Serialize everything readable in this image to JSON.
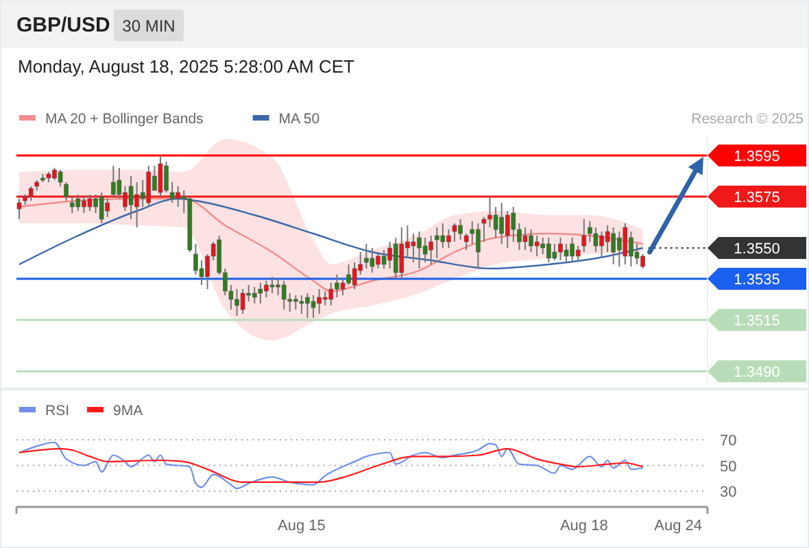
{
  "chart_data": [
    {
      "type": "candlestick",
      "title": "GBP/USD",
      "subtitle": "Monday, August 18, 2025 5:28:00 AM CET",
      "annotations": [
        "30 MIN",
        "Research © 2025"
      ],
      "legend": "top left",
      "ylim": [
        1.3484,
        1.3604
      ],
      "yticks": [
        {
          "value": 1.349,
          "label": "1.3490"
        },
        1.3515,
        1.3535,
        {
          "value": 1.355,
          "label": "1.3550"
        },
        1.3575,
        1.3595
      ],
      "categories": [
        null,
        null,
        null,
        null,
        null,
        null,
        null,
        null,
        null,
        null,
        null,
        null,
        null,
        null,
        null,
        null,
        null,
        null,
        null,
        null,
        null,
        null,
        null,
        null,
        null,
        null,
        null,
        null,
        null,
        null,
        null,
        null,
        null,
        null,
        null,
        null,
        null,
        null,
        null,
        null,
        null,
        null,
        null,
        null,
        null,
        null,
        null,
        null,
        null,
        null,
        null,
        null,
        null,
        null,
        null,
        null,
        null,
        null,
        null,
        null,
        null,
        null,
        null,
        null,
        null,
        null,
        null,
        null,
        null,
        null,
        null,
        null,
        null,
        null,
        null,
        null,
        null,
        null,
        null,
        null,
        null,
        null,
        null,
        null,
        null,
        null,
        null,
        null,
        null,
        null,
        null,
        null,
        null,
        null,
        null,
        null,
        null,
        null,
        null,
        null,
        null,
        null,
        null,
        null,
        null,
        null,
        null,
        null,
        null,
        null,
        null,
        null,
        null,
        null,
        null,
        null,
        null,
        null
      ],
      "ohlc": [
        [
          1.3569,
          1.3574,
          1.3564,
          1.3572
        ],
        [
          1.3573,
          1.3576,
          1.3571,
          1.3575
        ],
        [
          1.3575,
          1.358,
          1.3573,
          1.3579
        ],
        [
          1.358,
          1.3583,
          1.3578,
          1.3582
        ],
        [
          1.3584,
          1.3586,
          1.3582,
          1.3583
        ],
        [
          1.3584,
          1.3587,
          1.3582,
          1.3586
        ],
        [
          1.3584,
          1.3589,
          1.3583,
          1.3588
        ],
        [
          1.3587,
          1.3588,
          1.358,
          1.3582
        ],
        [
          1.3581,
          1.3582,
          1.3573,
          1.3575
        ],
        [
          1.3572,
          1.3575,
          1.3567,
          1.357
        ],
        [
          1.3574,
          1.3576,
          1.3568,
          1.357
        ],
        [
          1.357,
          1.3575,
          1.3567,
          1.3573
        ],
        [
          1.357,
          1.3576,
          1.3568,
          1.3574
        ],
        [
          1.3574,
          1.3576,
          1.3567,
          1.357
        ],
        [
          1.3575,
          1.3577,
          1.3562,
          1.3564
        ],
        [
          1.3568,
          1.3574,
          1.3565,
          1.3572
        ],
        [
          1.3582,
          1.359,
          1.3575,
          1.3576
        ],
        [
          1.3583,
          1.3589,
          1.3574,
          1.3576
        ],
        [
          1.357,
          1.358,
          1.3568,
          1.3577
        ],
        [
          1.358,
          1.3585,
          1.3564,
          1.3571
        ],
        [
          1.357,
          1.3582,
          1.356,
          1.3576
        ],
        [
          1.3577,
          1.3583,
          1.357,
          1.3574
        ],
        [
          1.3572,
          1.359,
          1.357,
          1.3587
        ],
        [
          1.3585,
          1.359,
          1.3578,
          1.3578
        ],
        [
          1.3577,
          1.3595,
          1.3575,
          1.3591
        ],
        [
          1.359,
          1.3592,
          1.3577,
          1.3578
        ],
        [
          1.3577,
          1.3582,
          1.3572,
          1.3574
        ],
        [
          1.3574,
          1.358,
          1.357,
          1.3577
        ],
        [
          1.3575,
          1.3578,
          1.3567,
          1.3574
        ],
        [
          1.3574,
          1.3575,
          1.3548,
          1.3549
        ],
        [
          1.3547,
          1.3552,
          1.3537,
          1.3539
        ],
        [
          1.354,
          1.3544,
          1.3532,
          1.3536
        ],
        [
          1.3536,
          1.3547,
          1.353,
          1.3546
        ],
        [
          1.3546,
          1.3553,
          1.3544,
          1.3552
        ],
        [
          1.3554,
          1.3556,
          1.3537,
          1.3538
        ],
        [
          1.3538,
          1.354,
          1.3527,
          1.3529
        ],
        [
          1.3529,
          1.3532,
          1.352,
          1.3525
        ],
        [
          1.3525,
          1.353,
          1.3517,
          1.3522
        ],
        [
          1.352,
          1.353,
          1.3518,
          1.3528
        ],
        [
          1.3528,
          1.3532,
          1.3524,
          1.3527
        ],
        [
          1.3528,
          1.3531,
          1.3523,
          1.3526
        ],
        [
          1.353,
          1.3533,
          1.3523,
          1.3528
        ],
        [
          1.3529,
          1.3534,
          1.3526,
          1.3532
        ],
        [
          1.3532,
          1.3536,
          1.3528,
          1.3531
        ],
        [
          1.3532,
          1.3535,
          1.3527,
          1.3531
        ],
        [
          1.3532,
          1.3534,
          1.352,
          1.3525
        ],
        [
          1.3525,
          1.3528,
          1.3519,
          1.3524
        ],
        [
          1.3525,
          1.3527,
          1.352,
          1.3524
        ],
        [
          1.3524,
          1.3527,
          1.3518,
          1.3523
        ],
        [
          1.3526,
          1.3528,
          1.3516,
          1.3523
        ],
        [
          1.3524,
          1.3527,
          1.3516,
          1.3521
        ],
        [
          1.3523,
          1.353,
          1.3518,
          1.3526
        ],
        [
          1.3525,
          1.3529,
          1.3522,
          1.3526
        ],
        [
          1.3525,
          1.3533,
          1.3522,
          1.353
        ],
        [
          1.3533,
          1.3537,
          1.3526,
          1.353
        ],
        [
          1.353,
          1.3535,
          1.3527,
          1.3533
        ],
        [
          1.3537,
          1.3542,
          1.3532,
          1.3533
        ],
        [
          1.3532,
          1.3543,
          1.353,
          1.354
        ],
        [
          1.3539,
          1.3548,
          1.3537,
          1.3542
        ],
        [
          1.3545,
          1.3552,
          1.354,
          1.3543
        ],
        [
          1.3545,
          1.355,
          1.3538,
          1.3541
        ],
        [
          1.3542,
          1.3548,
          1.354,
          1.3546
        ],
        [
          1.3546,
          1.3549,
          1.354,
          1.3542
        ],
        [
          1.3544,
          1.3553,
          1.354,
          1.355
        ],
        [
          1.3552,
          1.3555,
          1.3535,
          1.3538
        ],
        [
          1.3538,
          1.356,
          1.3535,
          1.3552
        ],
        [
          1.355,
          1.3561,
          1.3545,
          1.3553
        ],
        [
          1.3551,
          1.3557,
          1.3543,
          1.3553
        ],
        [
          1.3555,
          1.3558,
          1.354,
          1.355
        ],
        [
          1.3551,
          1.3555,
          1.3543,
          1.3547
        ],
        [
          1.3549,
          1.3556,
          1.3542,
          1.3553
        ],
        [
          1.3556,
          1.356,
          1.3545,
          1.3554
        ],
        [
          1.3556,
          1.3562,
          1.355,
          1.3553
        ],
        [
          1.3553,
          1.3559,
          1.355,
          1.3556
        ],
        [
          1.3558,
          1.3562,
          1.3553,
          1.3561
        ],
        [
          1.3561,
          1.3564,
          1.3554,
          1.3557
        ],
        [
          1.3553,
          1.3557,
          1.3549,
          1.3556
        ],
        [
          1.3559,
          1.3563,
          1.3552,
          1.3557
        ],
        [
          1.3559,
          1.3562,
          1.354,
          1.3548
        ],
        [
          1.3562,
          1.3565,
          1.3553,
          1.3564
        ],
        [
          1.3564,
          1.3575,
          1.356,
          1.3566
        ],
        [
          1.3566,
          1.357,
          1.3555,
          1.3559
        ],
        [
          1.3565,
          1.3572,
          1.3552,
          1.3557
        ],
        [
          1.3556,
          1.3568,
          1.355,
          1.3566
        ],
        [
          1.3567,
          1.357,
          1.3553,
          1.3559
        ],
        [
          1.3559,
          1.3562,
          1.3549,
          1.3553
        ],
        [
          1.3553,
          1.356,
          1.3549,
          1.3556
        ],
        [
          1.3556,
          1.3559,
          1.3548,
          1.3551
        ],
        [
          1.3551,
          1.3556,
          1.3546,
          1.3553
        ],
        [
          1.3552,
          1.3555,
          1.3547,
          1.355
        ],
        [
          1.3552,
          1.3555,
          1.3543,
          1.3545
        ],
        [
          1.3548,
          1.3552,
          1.3544,
          1.3545
        ],
        [
          1.3548,
          1.3555,
          1.3544,
          1.3552
        ],
        [
          1.3549,
          1.3552,
          1.3543,
          1.3546
        ],
        [
          1.3552,
          1.3555,
          1.3543,
          1.3546
        ],
        [
          1.3546,
          1.3551,
          1.3544,
          1.3549
        ],
        [
          1.3551,
          1.3564,
          1.3548,
          1.3556
        ],
        [
          1.356,
          1.3563,
          1.3553,
          1.3557
        ],
        [
          1.3557,
          1.356,
          1.3548,
          1.3551
        ],
        [
          1.3551,
          1.3558,
          1.3546,
          1.3556
        ],
        [
          1.3553,
          1.3561,
          1.3548,
          1.3558
        ],
        [
          1.3557,
          1.356,
          1.3542,
          1.3548
        ],
        [
          1.3555,
          1.3558,
          1.3541,
          1.3549
        ],
        [
          1.3546,
          1.3562,
          1.3542,
          1.356
        ],
        [
          1.3555,
          1.3558,
          1.3541,
          1.3546
        ],
        [
          1.3548,
          1.3552,
          1.3542,
          1.3545
        ],
        [
          1.3541,
          1.3547,
          1.354,
          1.3546
        ],
        null,
        null,
        null,
        null,
        null,
        null,
        null,
        null,
        null,
        null,
        null
      ],
      "colors": [
        "#e8141c",
        "#e8141c",
        "#e8141c",
        "#e8141c",
        "#2f7d1f",
        "#e8141c",
        "#e8141c",
        "#2f7d1f",
        "#2f7d1f",
        "#2f7d1f",
        "#2f7d1f",
        "#e8141c",
        "#e8141c",
        "#2f7d1f",
        "#2f7d1f",
        "#e8141c",
        "#2f7d1f",
        "#2f7d1f",
        "#e8141c",
        "#2f7d1f",
        "#e8141c",
        "#2f7d1f",
        "#e8141c",
        "#2f7d1f",
        "#e8141c",
        "#2f7d1f",
        "#2f7d1f",
        "#e8141c",
        "#2f7d1f",
        "#2f7d1f",
        "#2f7d1f",
        "#2f7d1f",
        "#e8141c",
        "#e8141c",
        "#2f7d1f",
        "#2f7d1f",
        "#2f7d1f",
        "#2f7d1f",
        "#e8141c",
        "#2f7d1f",
        "#2f7d1f",
        "#2f7d1f",
        "#e8141c",
        "#2f7d1f",
        "#2f7d1f",
        "#2f7d1f",
        "#2f7d1f",
        "#2f7d1f",
        "#2f7d1f",
        "#2f7d1f",
        "#2f7d1f",
        "#e8141c",
        "#e8141c",
        "#e8141c",
        "#2f7d1f",
        "#e8141c",
        "#2f7d1f",
        "#e8141c",
        "#e8141c",
        "#2f7d1f",
        "#2f7d1f",
        "#e8141c",
        "#2f7d1f",
        "#e8141c",
        "#2f7d1f",
        "#e8141c",
        "#e8141c",
        "#e8141c",
        "#2f7d1f",
        "#2f7d1f",
        "#e8141c",
        "#2f7d1f",
        "#2f7d1f",
        "#e8141c",
        "#e8141c",
        "#2f7d1f",
        "#e8141c",
        "#2f7d1f",
        "#2f7d1f",
        "#e8141c",
        "#e8141c",
        "#2f7d1f",
        "#2f7d1f",
        "#e8141c",
        "#2f7d1f",
        "#2f7d1f",
        "#e8141c",
        "#2f7d1f",
        "#e8141c",
        "#2f7d1f",
        "#2f7d1f",
        "#2f7d1f",
        "#e8141c",
        "#2f7d1f",
        "#2f7d1f",
        "#e8141c",
        "#e8141c",
        "#2f7d1f",
        "#2f7d1f",
        "#e8141c",
        "#e8141c",
        "#2f7d1f",
        "#2f7d1f",
        "#e8141c",
        "#2f7d1f",
        "#2f7d1f",
        "#e8141c",
        null,
        null,
        null,
        null,
        null,
        null,
        null,
        null,
        null,
        null,
        null
      ],
      "series": [
        {
          "type": "line",
          "name": "MA 20 + Bollinger Bands",
          "color": "#f48c8c",
          "values": [
            1.357,
            null,
            null,
            null,
            null,
            null,
            null,
            null,
            null,
            null,
            1.3573,
            null,
            null,
            null,
            null,
            null,
            null,
            null,
            null,
            null,
            1.3574,
            null,
            null,
            null,
            null,
            null,
            null,
            null,
            1.3574,
            null,
            null,
            null,
            null,
            null,
            null,
            1.3561,
            null,
            null,
            null,
            null,
            null,
            null,
            null,
            1.3548,
            null,
            null,
            null,
            null,
            null,
            null,
            1.3534,
            null,
            null,
            1.3529,
            null,
            null,
            null,
            null,
            null,
            null,
            1.3534,
            null,
            null,
            null,
            null,
            null,
            null,
            null,
            1.3539,
            null,
            null,
            null,
            null,
            null,
            1.3548,
            null,
            null,
            null,
            null,
            null,
            null,
            1.3555,
            null,
            null,
            null,
            null,
            null,
            null,
            null,
            null,
            1.3557,
            null,
            null,
            null,
            null,
            null,
            null,
            1.3556,
            null,
            null,
            null,
            null,
            null,
            null,
            null,
            null,
            1.3552,
            null,
            null,
            null,
            null,
            null,
            null,
            null,
            null,
            null,
            null,
            null
          ],
          "upper": [
            1.3587,
            null,
            null,
            null,
            null,
            null,
            null,
            null,
            null,
            null,
            1.3588,
            null,
            null,
            null,
            null,
            null,
            null,
            null,
            null,
            null,
            1.3588,
            null,
            null,
            null,
            null,
            null,
            null,
            null,
            1.3587,
            null,
            null,
            null,
            null,
            null,
            null,
            1.3603,
            null,
            null,
            null,
            null,
            null,
            null,
            null,
            1.3594,
            null,
            null,
            null,
            null,
            null,
            null,
            1.3554,
            null,
            null,
            1.3542,
            null,
            null,
            null,
            null,
            null,
            null,
            1.3549,
            null,
            null,
            null,
            null,
            null,
            null,
            null,
            1.3557,
            null,
            null,
            null,
            null,
            null,
            1.3566,
            null,
            null,
            null,
            null,
            null,
            null,
            1.3568,
            null,
            null,
            null,
            null,
            null,
            null,
            null,
            null,
            1.3566,
            null,
            null,
            null,
            null,
            null,
            null,
            1.3566,
            null,
            null,
            null,
            null,
            null,
            null,
            null,
            null,
            1.3559,
            null,
            null,
            null,
            null,
            null,
            null,
            null,
            null,
            null,
            null,
            null
          ],
          "lower": [
            1.3562,
            null,
            null,
            null,
            null,
            null,
            null,
            null,
            null,
            null,
            1.3562,
            null,
            null,
            null,
            null,
            null,
            null,
            null,
            null,
            null,
            1.3561,
            null,
            null,
            null,
            null,
            null,
            null,
            null,
            1.356,
            null,
            null,
            null,
            null,
            null,
            null,
            1.352,
            null,
            null,
            null,
            null,
            null,
            null,
            null,
            1.3505,
            null,
            null,
            null,
            null,
            null,
            null,
            1.3514,
            null,
            null,
            1.3518,
            null,
            null,
            null,
            null,
            null,
            null,
            1.3522,
            null,
            null,
            null,
            null,
            null,
            null,
            null,
            1.3528,
            null,
            null,
            null,
            null,
            null,
            1.3535,
            null,
            null,
            null,
            null,
            null,
            null,
            1.3542,
            null,
            null,
            null,
            null,
            null,
            null,
            null,
            null,
            1.3545,
            null,
            null,
            null,
            null,
            null,
            null,
            1.3547,
            null,
            null,
            null,
            null,
            null,
            null,
            null,
            null,
            1.3548,
            null,
            null,
            null,
            null,
            null,
            null,
            null,
            null,
            null,
            null,
            null
          ]
        },
        {
          "type": "line",
          "name": "MA 50",
          "color": "#3d68a8",
          "values": [
            1.3542,
            null,
            null,
            null,
            null,
            null,
            null,
            null,
            null,
            null,
            1.3556,
            null,
            null,
            null,
            null,
            null,
            null,
            null,
            null,
            null,
            1.3568,
            null,
            null,
            null,
            null,
            null,
            null,
            1.3574,
            null,
            null,
            1.3573,
            null,
            null,
            null,
            null,
            null,
            null,
            null,
            null,
            null,
            1.3566,
            null,
            null,
            null,
            null,
            null,
            null,
            null,
            null,
            null,
            1.3557,
            null,
            null,
            null,
            null,
            null,
            null,
            null,
            null,
            null,
            1.3548,
            null,
            null,
            null,
            null,
            null,
            null,
            null,
            null,
            null,
            1.3544,
            null,
            null,
            null,
            null,
            null,
            null,
            null,
            null,
            null,
            1.354,
            null,
            null,
            null,
            null,
            null,
            null,
            null,
            null,
            null,
            1.3542,
            null,
            null,
            null,
            null,
            null,
            null,
            null,
            null,
            null,
            1.3546,
            null,
            null,
            null,
            null,
            null,
            1.355,
            null,
            null,
            null,
            null,
            null,
            null,
            null,
            null,
            null,
            null,
            null
          ]
        }
      ],
      "ref_lines": [
        {
          "axis": "y",
          "value": 1.3595,
          "color": "#ff0000"
        },
        {
          "axis": "y",
          "value": 1.3575,
          "color": "#f01818"
        },
        {
          "axis": "y",
          "value": 1.355,
          "color": "#333333",
          "line_style": "dotted"
        },
        {
          "axis": "y",
          "value": 1.3535,
          "color": "#1a5ff0"
        },
        {
          "axis": "y",
          "value": 1.3515,
          "color": "#b8dcb8"
        },
        {
          "axis": "y",
          "value": 1.349,
          "color": "#b8dcb8"
        }
      ]
    },
    {
      "type": "line",
      "legend": "top left",
      "grid": "y",
      "ylim": [
        30,
        70
      ],
      "yticks": [
        30,
        50,
        70
      ],
      "categories": [
        null,
        null,
        null,
        null,
        null,
        null,
        null,
        null,
        null,
        null,
        null,
        null,
        null,
        null,
        null,
        null,
        null,
        null,
        null,
        null,
        null,
        null,
        null,
        null,
        null,
        null,
        null,
        null,
        null,
        null,
        null,
        null,
        null,
        null,
        null,
        null,
        null,
        null,
        null,
        null,
        null,
        null,
        null,
        null,
        null,
        null,
        null,
        null,
        "Aug 15",
        null,
        null,
        null,
        null,
        null,
        null,
        null,
        null,
        null,
        null,
        null,
        null,
        null,
        null,
        null,
        null,
        null,
        null,
        null,
        null,
        null,
        null,
        null,
        null,
        null,
        null,
        null,
        null,
        null,
        null,
        null,
        null,
        null,
        null,
        null,
        null,
        null,
        null,
        null,
        null,
        null,
        null,
        null,
        null,
        null,
        null,
        null,
        "Aug 18",
        null,
        null,
        null,
        null,
        null,
        null,
        null,
        null,
        null,
        null,
        null,
        null,
        null,
        null,
        null,
        "Aug 24",
        null,
        null,
        null,
        null,
        null
      ],
      "series": [
        {
          "name": "RSI",
          "color": "#6f8fe8",
          "values": [
            60,
            null,
            null,
            65,
            null,
            null,
            68,
            null,
            55,
            null,
            null,
            50,
            null,
            53,
            45,
            null,
            58,
            null,
            53,
            49,
            null,
            null,
            58,
            53,
            58,
            51,
            null,
            null,
            null,
            49,
            36,
            33,
            null,
            43,
            null,
            null,
            35,
            32,
            null,
            36,
            null,
            null,
            null,
            41,
            null,
            null,
            37,
            null,
            null,
            null,
            35,
            null,
            42,
            null,
            47,
            null,
            null,
            53,
            null,
            57,
            null,
            null,
            null,
            60,
            51,
            null,
            null,
            58,
            null,
            60,
            null,
            null,
            56,
            null,
            58,
            null,
            null,
            null,
            62,
            null,
            67,
            66,
            57,
            63,
            null,
            51,
            null,
            null,
            50,
            null,
            null,
            44,
            50,
            null,
            47,
            null,
            null,
            57,
            null,
            49,
            54,
            48,
            null,
            54,
            47,
            null,
            48,
            null,
            null,
            null,
            null,
            null,
            null,
            null,
            null,
            null,
            null,
            null
          ]
        },
        {
          "name": "9MA",
          "color": "#ff1a1a",
          "values": [
            60,
            null,
            null,
            null,
            null,
            null,
            null,
            63,
            null,
            62,
            null,
            null,
            57,
            null,
            null,
            53,
            null,
            null,
            null,
            null,
            null,
            null,
            null,
            null,
            54,
            null,
            null,
            null,
            53,
            null,
            null,
            null,
            47,
            null,
            null,
            null,
            null,
            null,
            37,
            null,
            null,
            null,
            null,
            null,
            null,
            37,
            null,
            null,
            null,
            null,
            null,
            37,
            null,
            null,
            null,
            null,
            42,
            null,
            null,
            null,
            null,
            50,
            null,
            null,
            null,
            null,
            null,
            57,
            null,
            null,
            null,
            null,
            57,
            null,
            null,
            null,
            null,
            null,
            58,
            null,
            null,
            null,
            null,
            63,
            null,
            null,
            null,
            null,
            55,
            null,
            null,
            null,
            51,
            null,
            null,
            49,
            null,
            null,
            null,
            null,
            51,
            null,
            null,
            52,
            null,
            null,
            49,
            null,
            null,
            null,
            null,
            null,
            null,
            null,
            null,
            null,
            null,
            null
          ]
        }
      ]
    }
  ]
}
